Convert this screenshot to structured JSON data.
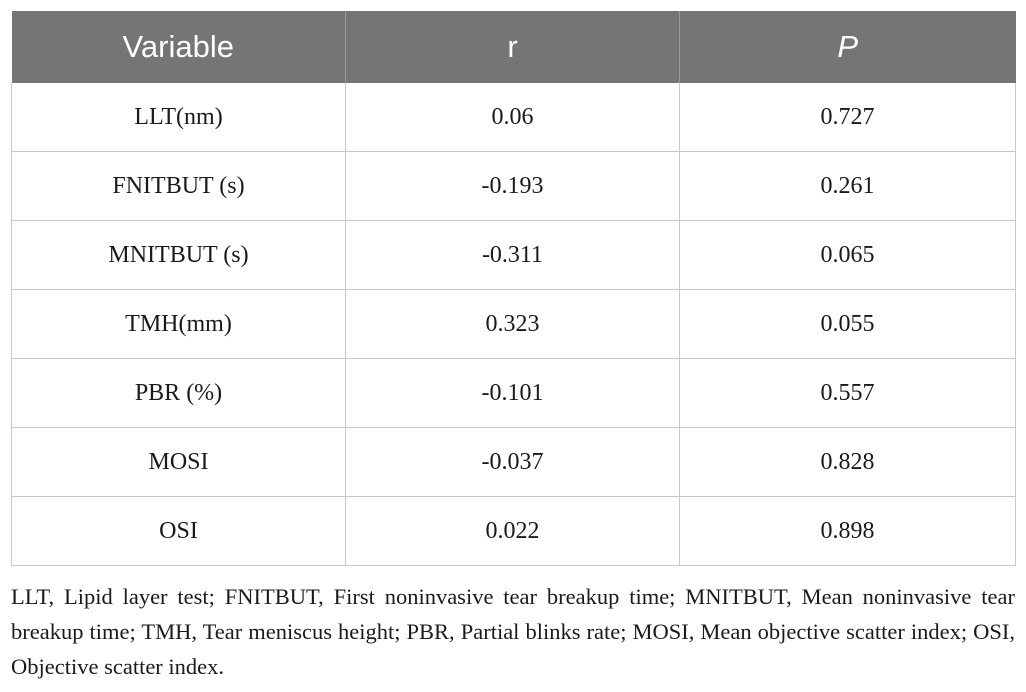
{
  "table": {
    "headers": [
      "Variable",
      "r",
      "P"
    ],
    "rows": [
      [
        "LLT(nm)",
        "0.06",
        "0.727"
      ],
      [
        "FNITBUT (s)",
        "-0.193",
        "0.261"
      ],
      [
        "MNITBUT (s)",
        "-0.311",
        "0.065"
      ],
      [
        "TMH(mm)",
        "0.323",
        "0.055"
      ],
      [
        "PBR (%)",
        "-0.101",
        "0.557"
      ],
      [
        "MOSI",
        "-0.037",
        "0.828"
      ],
      [
        "OSI",
        "0.022",
        "0.898"
      ]
    ]
  },
  "footnote": "LLT, Lipid layer test; FNITBUT, First noninvasive tear breakup time; MNITBUT, Mean noninvasive tear breakup time; TMH, Tear meniscus height; PBR, Partial blinks rate; MOSI, Mean objective scatter index; OSI, Objective scatter index.",
  "colors": {
    "header_bg": "#757575",
    "header_text": "#ffffff",
    "grid_line": "#c8c8c8"
  }
}
